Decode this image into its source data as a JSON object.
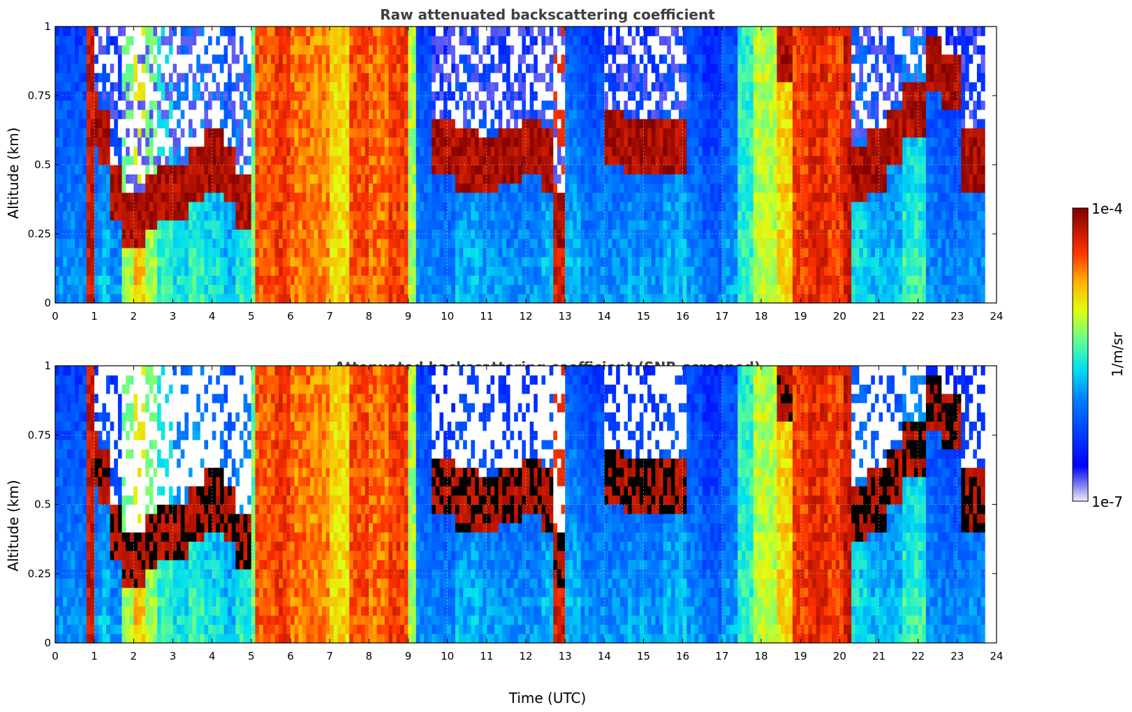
{
  "chart_data": [
    {
      "type": "heatmap",
      "title": "Raw attenuated backscattering coefficient",
      "xlabel": "",
      "ylabel": "Altitude (km)",
      "xlim": [
        0,
        24
      ],
      "ylim": [
        0,
        1
      ],
      "x_ticks": [
        "0",
        "1",
        "2",
        "3",
        "4",
        "5",
        "6",
        "7",
        "8",
        "9",
        "10",
        "11",
        "12",
        "13",
        "14",
        "15",
        "16",
        "17",
        "18",
        "19",
        "20",
        "21",
        "22",
        "23",
        "24"
      ],
      "y_ticks": [
        "0",
        "0.25",
        "0.5",
        "0.75",
        "1"
      ],
      "grid": true,
      "screened": false,
      "column_profiles": {
        "x": [
          0,
          0.8,
          0.95,
          1.05,
          1.4,
          1.7,
          2.0,
          2.3,
          2.6,
          3.0,
          3.4,
          3.8,
          4.2,
          4.6,
          4.95,
          5.1,
          5.6,
          6.0,
          6.5,
          7.0,
          7.5,
          8.0,
          8.5,
          9.0,
          9.15,
          9.6,
          10.2,
          10.8,
          11.3,
          11.8,
          12.3,
          12.7,
          12.9,
          13.4,
          14.0,
          14.5,
          15.0,
          15.5,
          16.05,
          16.5,
          17.0,
          17.4,
          17.8,
          18.3,
          18.75,
          19.2,
          19.7,
          20.05,
          20.25,
          20.7,
          21.2,
          21.6,
          22.1,
          22.6,
          23.1,
          23.65
        ],
        "level": [
          0.3,
          0.92,
          0.3,
          0.35,
          0.3,
          0.6,
          0.72,
          0.6,
          0.5,
          0.4,
          0.45,
          0.4,
          0.35,
          0.42,
          0.55,
          0.82,
          0.85,
          0.8,
          0.78,
          0.7,
          0.83,
          0.8,
          0.85,
          0.6,
          0.3,
          0.28,
          0.35,
          0.32,
          0.3,
          0.3,
          0.35,
          0.9,
          0.35,
          0.3,
          0.3,
          0.32,
          0.3,
          0.35,
          0.3,
          0.25,
          0.32,
          0.5,
          0.62,
          0.7,
          0.85,
          0.88,
          0.85,
          0.92,
          0.4,
          0.35,
          0.35,
          0.45,
          0.3,
          0.28,
          0.3,
          0.3
        ],
        "cloud_base_km": [
          null,
          null,
          0.55,
          0.5,
          0.3,
          0.2,
          0.2,
          0.25,
          0.3,
          0.3,
          0.35,
          0.4,
          0.35,
          0.25,
          null,
          null,
          null,
          null,
          null,
          null,
          null,
          null,
          null,
          null,
          null,
          0.45,
          0.4,
          0.38,
          0.42,
          0.45,
          0.4,
          0.2,
          null,
          null,
          0.5,
          0.45,
          0.45,
          0.45,
          null,
          null,
          null,
          null,
          null,
          0.8,
          null,
          null,
          null,
          null,
          0.35,
          0.4,
          0.5,
          0.6,
          0.75,
          0.7,
          0.4,
          0.45
        ]
      }
    },
    {
      "type": "heatmap",
      "title": "Attenuated backscattering coefficient (SNR-screened)",
      "xlabel": "Time (UTC)",
      "ylabel": "Altitude (km)",
      "xlim": [
        0,
        24
      ],
      "ylim": [
        0,
        1
      ],
      "x_ticks": [
        "0",
        "1",
        "2",
        "3",
        "4",
        "5",
        "6",
        "7",
        "8",
        "9",
        "10",
        "11",
        "12",
        "13",
        "14",
        "15",
        "16",
        "17",
        "18",
        "19",
        "20",
        "21",
        "22",
        "23",
        "24"
      ],
      "y_ticks": [
        "0",
        "0.25",
        "0.5",
        "0.75",
        "1"
      ],
      "grid": true,
      "screened": true
    }
  ],
  "colorbar": {
    "label": "1/m/sr",
    "max_label": "1e-4",
    "min_label": "1e-7",
    "colormap": "jet",
    "low_color": "#e8e8f8"
  }
}
